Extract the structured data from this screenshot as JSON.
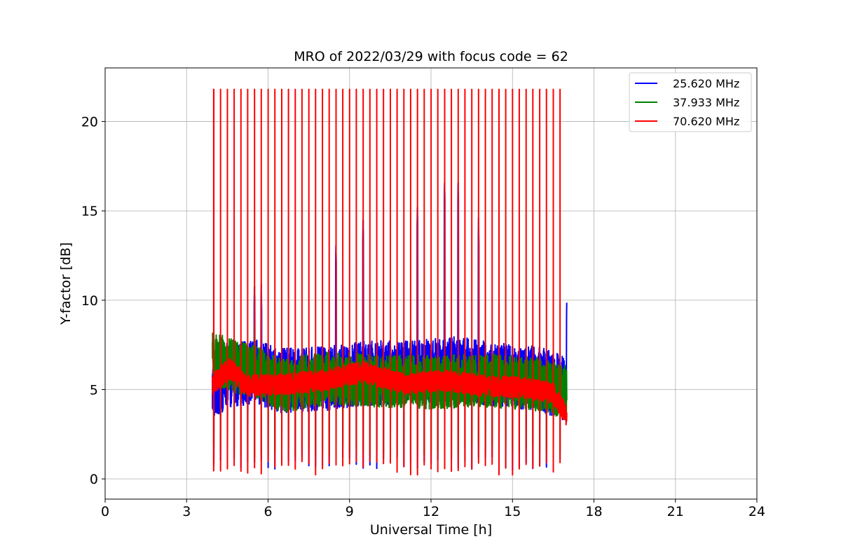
{
  "chart_data": {
    "type": "line",
    "title": "MRO of 2022/03/29 with focus code = 62",
    "xlabel": "Universal Time [h]",
    "ylabel": "Y-factor [dB]",
    "xlim": [
      0,
      24
    ],
    "ylim": [
      -1.13,
      23.0
    ],
    "xticks": [
      0,
      3,
      6,
      9,
      12,
      15,
      18,
      21,
      24
    ],
    "yticks": [
      0,
      5,
      10,
      15,
      20
    ],
    "grid": true,
    "legend_position": "upper right",
    "time_range": [
      3.95,
      17.0
    ],
    "calibration_spike_interval": 0.25,
    "series": [
      {
        "name": "25.620 MHz",
        "color": "#0000ff",
        "baseline_profile": [
          [
            3.95,
            5.0
          ],
          [
            4.5,
            5.8
          ],
          [
            5.5,
            6.0
          ],
          [
            6.5,
            5.5
          ],
          [
            8.0,
            5.6
          ],
          [
            9.5,
            5.9
          ],
          [
            11.5,
            6.0
          ],
          [
            13.0,
            6.2
          ],
          [
            14.5,
            5.8
          ],
          [
            16.0,
            5.6
          ],
          [
            17.0,
            5.0
          ]
        ],
        "noise_amplitude": 1.8,
        "spike_low": 0.5,
        "peaks": [
          [
            5.5,
            11.0
          ],
          [
            5.7,
            10.9
          ],
          [
            8.4,
            13.3
          ],
          [
            9.4,
            14.7
          ],
          [
            11.5,
            15.4
          ],
          [
            12.4,
            16.8
          ],
          [
            13.0,
            16.8
          ],
          [
            13.85,
            14.6
          ],
          [
            17.0,
            10.1
          ]
        ]
      },
      {
        "name": "37.933 MHz",
        "color": "#008000",
        "baseline_profile": [
          [
            3.95,
            6.8
          ],
          [
            4.5,
            6.4
          ],
          [
            5.5,
            6.0
          ],
          [
            6.5,
            5.2
          ],
          [
            8.0,
            5.6
          ],
          [
            10.0,
            5.5
          ],
          [
            12.0,
            5.4
          ],
          [
            14.0,
            5.5
          ],
          [
            16.0,
            5.3
          ],
          [
            17.0,
            4.8
          ]
        ],
        "noise_amplitude": 1.5,
        "spike_low": 1.2,
        "peaks": [
          [
            5.6,
            8.8
          ],
          [
            11.2,
            8.4
          ]
        ]
      },
      {
        "name": "70.620 MHz",
        "color": "#ff0000",
        "baseline_profile": [
          [
            3.95,
            5.3
          ],
          [
            4.6,
            6.2
          ],
          [
            5.2,
            5.2
          ],
          [
            6.5,
            5.3
          ],
          [
            8.0,
            5.5
          ],
          [
            9.5,
            6.0
          ],
          [
            11.0,
            5.3
          ],
          [
            12.5,
            5.5
          ],
          [
            14.0,
            5.2
          ],
          [
            15.5,
            5.1
          ],
          [
            16.5,
            4.8
          ],
          [
            17.0,
            3.5
          ]
        ],
        "noise_amplitude": 0.6,
        "spike_low": 0.2,
        "spike_high": 21.8
      }
    ]
  }
}
